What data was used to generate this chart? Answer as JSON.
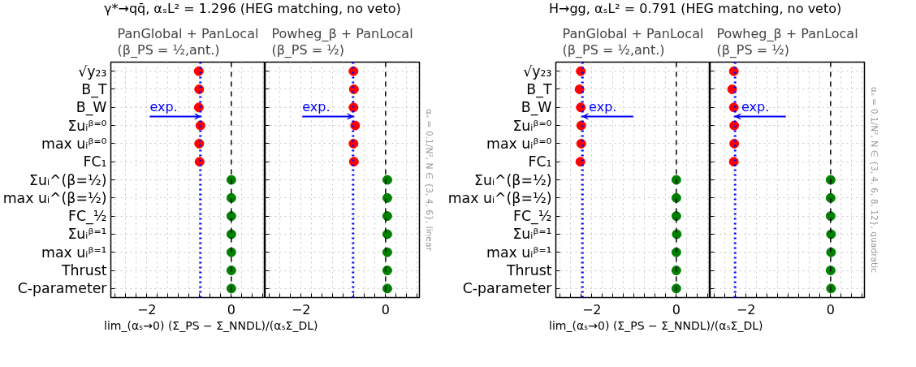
{
  "chart_data": [
    {
      "type": "scatter",
      "orientation": "horizontal",
      "title": "γ*→qq̄, αₛL² = 1.296 (HEG matching, no veto)",
      "subtitle": "PanGlobal + PanLocal\n(β_PS = ½,ant.)",
      "xlabel": "lim_(αₛ→0) (Σ_PS − Σ_NNDL)/(αₛΣ_DL)",
      "categories": [
        "√y₂₃",
        "B_T",
        "B_W",
        "Σuᵢᵝ⁼⁰",
        "max uᵢᵝ⁼⁰",
        "FC₁",
        "Σuᵢ^(β=½)",
        "max uᵢ^(β=½)",
        "FC_½",
        "Σuᵢᵝ⁼¹",
        "max uᵢᵝ⁼¹",
        "Thrust",
        "C-parameter"
      ],
      "series": [
        {
          "color": "#ff0000",
          "values": [
            -0.77,
            -0.76,
            -0.77,
            -0.73,
            -0.76,
            -0.75,
            null,
            null,
            null,
            null,
            null,
            null,
            null
          ],
          "errors": [
            0.06,
            0.06,
            0.06,
            0.06,
            0.06,
            0.06,
            null,
            null,
            null,
            null,
            null,
            null,
            null
          ]
        },
        {
          "color": "#008000",
          "values": [
            null,
            null,
            null,
            null,
            null,
            null,
            0,
            0,
            0,
            0,
            0,
            0,
            0
          ],
          "errors": [
            null,
            null,
            null,
            null,
            null,
            null,
            0.03,
            0.03,
            0.03,
            0.03,
            0.03,
            0.03,
            0.03
          ]
        }
      ],
      "xlim": [
        -2.85,
        0.8
      ],
      "xticks": [
        {
          "value": -2.75,
          "label": null
        },
        {
          "value": -2.5,
          "label": null
        },
        {
          "value": -2.25,
          "label": null
        },
        {
          "value": -2,
          "label": "−2"
        },
        {
          "value": -1.75,
          "label": null
        },
        {
          "value": -1.5,
          "label": null
        },
        {
          "value": -1.25,
          "label": null
        },
        {
          "value": -1,
          "label": null
        },
        {
          "value": -0.75,
          "label": null
        },
        {
          "value": -0.5,
          "label": null
        },
        {
          "value": -0.25,
          "label": null
        },
        0,
        {
          "value": 0.25,
          "label": null
        },
        {
          "value": 0.5,
          "label": null
        },
        {
          "value": 0.75,
          "label": null
        }
      ],
      "ref_lines": [
        {
          "axis": "x",
          "value": 0,
          "color": "#000000",
          "line_style": "dashed"
        },
        {
          "axis": "x",
          "value": -0.73,
          "color": "#0000ff",
          "line_style": "dotted",
          "label": "exp."
        }
      ],
      "grid": true,
      "marker": "circle"
    },
    {
      "type": "scatter",
      "orientation": "horizontal",
      "subtitle": "Powheg_β + PanLocal\n(β_PS = ½)",
      "tick_labels": "x",
      "categories": [
        null,
        null,
        null,
        null,
        null,
        null,
        null,
        null,
        null,
        null,
        null,
        null,
        null
      ],
      "series": [
        {
          "color": "#ff0000",
          "values": [
            -0.76,
            -0.75,
            -0.76,
            -0.72,
            -0.76,
            -0.75,
            null,
            null,
            null,
            null,
            null,
            null,
            null
          ],
          "errors": [
            0.06,
            0.06,
            0.06,
            0.06,
            0.06,
            0.06,
            null,
            null,
            null,
            null,
            null,
            null,
            null
          ]
        },
        {
          "color": "#008000",
          "values": [
            null,
            null,
            null,
            null,
            null,
            null,
            0.04,
            0.04,
            0.04,
            0.04,
            0.04,
            0.04,
            0.04
          ],
          "errors": [
            null,
            null,
            null,
            null,
            null,
            null,
            0.03,
            0.03,
            0.03,
            0.03,
            0.03,
            0.03,
            0.03
          ]
        }
      ],
      "xlim": [
        -2.85,
        0.8
      ],
      "xticks": [
        {
          "value": -2.75,
          "label": null
        },
        {
          "value": -2.5,
          "label": null
        },
        {
          "value": -2.25,
          "label": null
        },
        {
          "value": -2,
          "label": "−2"
        },
        {
          "value": -1.75,
          "label": null
        },
        {
          "value": -1.5,
          "label": null
        },
        {
          "value": -1.25,
          "label": null
        },
        {
          "value": -1,
          "label": null
        },
        {
          "value": -0.75,
          "label": null
        },
        {
          "value": -0.5,
          "label": null
        },
        {
          "value": -0.25,
          "label": null
        },
        0,
        {
          "value": 0.25,
          "label": null
        },
        {
          "value": 0.5,
          "label": null
        },
        {
          "value": 0.75,
          "label": null
        }
      ],
      "ref_lines": [
        {
          "axis": "x",
          "value": 0,
          "color": "#000000",
          "line_style": "dashed"
        },
        {
          "axis": "x",
          "value": -0.77,
          "color": "#0000ff",
          "line_style": "dotted",
          "label": "exp."
        }
      ],
      "annotations": [
        "αₛ = 0.1/N², N ∈ {3, 4, 6}, linear"
      ],
      "grid": true,
      "marker": "circle"
    },
    {
      "type": "scatter",
      "orientation": "horizontal",
      "title": "H→gg, αₛL² = 0.791 (HEG matching, no veto)",
      "subtitle": "PanGlobal + PanLocal\n(β_PS = ½,ant.)",
      "xlabel": "lim_(αₛ→0) (Σ_PS − Σ_NNDL)/(αₛΣ_DL)",
      "categories": [
        "√y₂₃",
        "B_T",
        "B_W",
        "Σuᵢᵝ⁼⁰",
        "max uᵢᵝ⁼⁰",
        "FC₁",
        "Σuᵢ^(β=½)",
        "max uᵢ^(β=½)",
        "FC_½",
        "Σuᵢᵝ⁼¹",
        "max uᵢᵝ⁼¹",
        "Thrust",
        "C-parameter"
      ],
      "series": [
        {
          "color": "#ff0000",
          "values": [
            -2.26,
            -2.29,
            -2.26,
            -2.25,
            -2.25,
            -2.27,
            null,
            null,
            null,
            null,
            null,
            null,
            null
          ],
          "errors": [
            0.06,
            0.06,
            0.06,
            0.06,
            0.06,
            0.06,
            null,
            null,
            null,
            null,
            null,
            null,
            null
          ]
        },
        {
          "color": "#008000",
          "values": [
            null,
            null,
            null,
            null,
            null,
            null,
            0,
            0,
            0,
            0.01,
            0,
            0,
            0
          ],
          "errors": [
            null,
            null,
            null,
            null,
            null,
            null,
            0.03,
            0.03,
            0.03,
            0.03,
            0.03,
            0.03,
            0.03
          ]
        }
      ],
      "xlim": [
        -2.85,
        0.8
      ],
      "xticks": [
        {
          "value": -2.75,
          "label": null
        },
        {
          "value": -2.5,
          "label": null
        },
        {
          "value": -2.25,
          "label": null
        },
        {
          "value": -2,
          "label": "−2"
        },
        {
          "value": -1.75,
          "label": null
        },
        {
          "value": -1.5,
          "label": null
        },
        {
          "value": -1.25,
          "label": null
        },
        {
          "value": -1,
          "label": null
        },
        {
          "value": -0.75,
          "label": null
        },
        {
          "value": -0.5,
          "label": null
        },
        {
          "value": -0.25,
          "label": null
        },
        0,
        {
          "value": 0.25,
          "label": null
        },
        {
          "value": 0.5,
          "label": null
        },
        {
          "value": 0.75,
          "label": null
        }
      ],
      "ref_lines": [
        {
          "axis": "x",
          "value": 0,
          "color": "#000000",
          "line_style": "dashed"
        },
        {
          "axis": "x",
          "value": -2.22,
          "color": "#0000ff",
          "line_style": "dotted",
          "label": "exp."
        }
      ],
      "grid": true,
      "marker": "circle"
    },
    {
      "type": "scatter",
      "orientation": "horizontal",
      "subtitle": "Powheg_β + PanLocal\n(β_PS = ½)",
      "tick_labels": "x",
      "categories": [
        null,
        null,
        null,
        null,
        null,
        null,
        null,
        null,
        null,
        null,
        null,
        null,
        null
      ],
      "series": [
        {
          "color": "#ff0000",
          "values": [
            -2.29,
            -2.33,
            -2.29,
            -2.28,
            -2.28,
            -2.29,
            null,
            null,
            null,
            null,
            null,
            null,
            null
          ],
          "errors": [
            0.06,
            0.06,
            0.06,
            0.06,
            0.06,
            0.06,
            null,
            null,
            null,
            null,
            null,
            null,
            null
          ]
        },
        {
          "color": "#008000",
          "values": [
            null,
            null,
            null,
            null,
            null,
            null,
            0,
            0,
            0,
            0.01,
            0.01,
            0,
            0.01
          ],
          "errors": [
            null,
            null,
            null,
            null,
            null,
            null,
            0.03,
            0.03,
            0.03,
            0.03,
            0.03,
            0.03,
            0.03
          ]
        }
      ],
      "xlim": [
        -2.85,
        0.8
      ],
      "xticks": [
        {
          "value": -2.75,
          "label": null
        },
        {
          "value": -2.5,
          "label": null
        },
        {
          "value": -2.25,
          "label": null
        },
        {
          "value": -2,
          "label": "−2"
        },
        {
          "value": -1.75,
          "label": null
        },
        {
          "value": -1.5,
          "label": null
        },
        {
          "value": -1.25,
          "label": null
        },
        {
          "value": -1,
          "label": null
        },
        {
          "value": -0.75,
          "label": null
        },
        {
          "value": -0.5,
          "label": null
        },
        {
          "value": -0.25,
          "label": null
        },
        0,
        {
          "value": 0.25,
          "label": null
        },
        {
          "value": 0.5,
          "label": null
        },
        {
          "value": 0.75,
          "label": null
        }
      ],
      "ref_lines": [
        {
          "axis": "x",
          "value": 0,
          "color": "#000000",
          "line_style": "dashed"
        },
        {
          "axis": "x",
          "value": -2.26,
          "color": "#0000ff",
          "line_style": "dotted",
          "label": "exp."
        }
      ],
      "annotations": [
        "αₛ = 0.1/N², N ∈ {3, 4, 6, 8, 12}, quadratic"
      ],
      "grid": true,
      "marker": "circle"
    }
  ]
}
